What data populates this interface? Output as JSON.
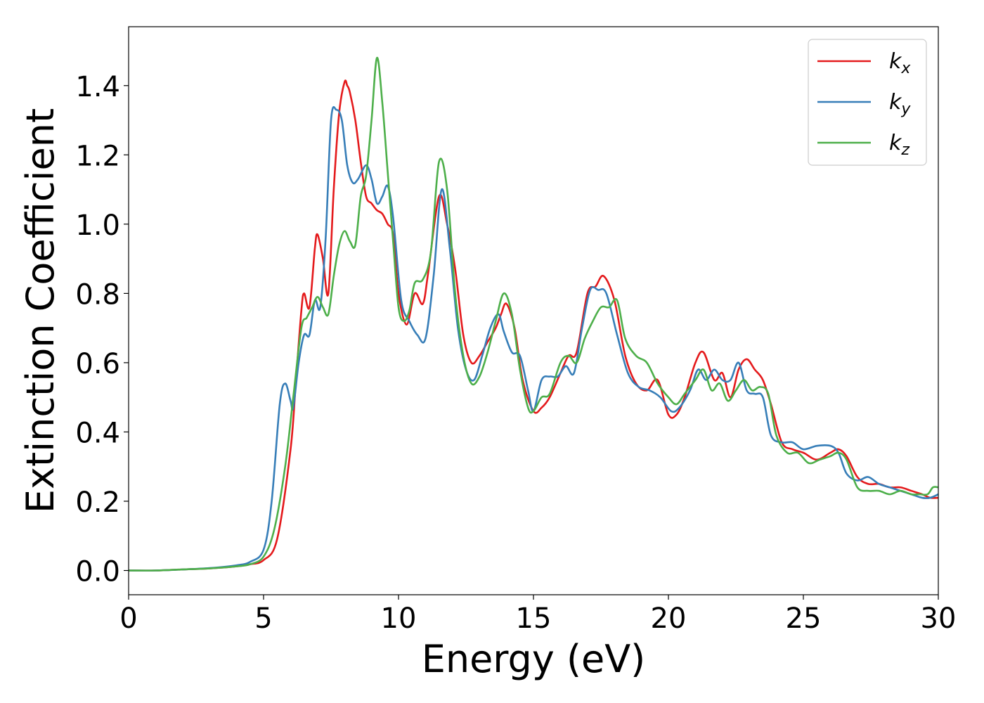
{
  "chart_data": {
    "type": "line",
    "xlabel": "Energy (eV)",
    "ylabel": "Extinction Coefficient",
    "xlim": [
      0,
      30
    ],
    "ylim": [
      -0.07,
      1.57
    ],
    "xticks": [
      0,
      5,
      10,
      15,
      20,
      25,
      30
    ],
    "xtick_labels": [
      "0",
      "5",
      "10",
      "15",
      "20",
      "25",
      "30"
    ],
    "yticks": [
      0.0,
      0.2,
      0.4,
      0.6,
      0.8,
      1.0,
      1.2,
      1.4
    ],
    "ytick_labels": [
      "0.0",
      "0.2",
      "0.4",
      "0.6",
      "0.8",
      "1.0",
      "1.2",
      "1.4"
    ],
    "grid": false,
    "legend_position": "top-right",
    "series": [
      {
        "name": "k_x",
        "label_base": "k",
        "label_sub": "x",
        "color": "#e41a1c",
        "x": [
          0,
          1,
          2,
          3,
          4,
          4.5,
          5,
          5.5,
          6,
          6.2,
          6.4,
          6.5,
          6.7,
          6.9,
          7.0,
          7.2,
          7.4,
          7.6,
          7.8,
          8.0,
          8.1,
          8.2,
          8.4,
          8.6,
          8.8,
          9.0,
          9.2,
          9.4,
          9.6,
          9.8,
          10.0,
          10.3,
          10.6,
          10.9,
          11.1,
          11.5,
          11.8,
          12.1,
          12.4,
          12.7,
          13.0,
          13.3,
          13.6,
          13.8,
          14.0,
          14.3,
          14.6,
          15.0,
          15.3,
          15.6,
          16.0,
          16.3,
          16.6,
          17.0,
          17.3,
          17.6,
          18.0,
          18.4,
          18.8,
          19.2,
          19.6,
          20.0,
          20.3,
          20.6,
          21.0,
          21.3,
          21.7,
          22.0,
          22.3,
          22.6,
          22.9,
          23.2,
          23.5,
          23.8,
          24.2,
          24.6,
          25.0,
          25.5,
          26.0,
          26.3,
          26.6,
          27.0,
          27.4,
          27.8,
          28.2,
          28.6,
          29.0,
          29.4,
          29.7,
          30.0
        ],
        "y": [
          0.0,
          0.0,
          0.003,
          0.006,
          0.012,
          0.018,
          0.03,
          0.09,
          0.35,
          0.55,
          0.75,
          0.8,
          0.76,
          0.93,
          0.97,
          0.9,
          0.8,
          1.1,
          1.32,
          1.41,
          1.4,
          1.38,
          1.3,
          1.18,
          1.08,
          1.06,
          1.04,
          1.03,
          1.0,
          0.97,
          0.8,
          0.71,
          0.8,
          0.77,
          0.86,
          1.08,
          1.0,
          0.87,
          0.68,
          0.6,
          0.62,
          0.66,
          0.7,
          0.74,
          0.77,
          0.7,
          0.55,
          0.46,
          0.47,
          0.5,
          0.57,
          0.62,
          0.63,
          0.8,
          0.82,
          0.85,
          0.78,
          0.62,
          0.54,
          0.52,
          0.55,
          0.45,
          0.45,
          0.5,
          0.6,
          0.63,
          0.55,
          0.57,
          0.5,
          0.58,
          0.61,
          0.58,
          0.55,
          0.48,
          0.37,
          0.35,
          0.34,
          0.32,
          0.34,
          0.35,
          0.33,
          0.27,
          0.25,
          0.25,
          0.24,
          0.24,
          0.23,
          0.22,
          0.21,
          0.21
        ]
      },
      {
        "name": "k_y",
        "label_base": "k",
        "label_sub": "y",
        "color": "#377eb8",
        "x": [
          0,
          1,
          2,
          3,
          4,
          4.5,
          5,
          5.3,
          5.6,
          5.8,
          6.0,
          6.1,
          6.3,
          6.5,
          6.7,
          6.9,
          7.1,
          7.3,
          7.5,
          7.7,
          7.9,
          8.1,
          8.3,
          8.5,
          8.8,
          9.0,
          9.2,
          9.4,
          9.6,
          9.8,
          10.1,
          10.4,
          10.7,
          11.0,
          11.3,
          11.6,
          11.9,
          12.2,
          12.5,
          12.8,
          13.1,
          13.4,
          13.7,
          13.9,
          14.2,
          14.5,
          14.8,
          15.0,
          15.3,
          15.6,
          15.9,
          16.2,
          16.5,
          16.8,
          17.1,
          17.4,
          17.7,
          18.1,
          18.5,
          18.9,
          19.3,
          19.7,
          20.1,
          20.4,
          20.8,
          21.1,
          21.4,
          21.7,
          22.0,
          22.3,
          22.6,
          22.9,
          23.2,
          23.5,
          23.8,
          24.2,
          24.6,
          25.0,
          25.5,
          26.0,
          26.3,
          26.6,
          27.0,
          27.4,
          27.8,
          28.2,
          28.6,
          29.0,
          29.4,
          29.7,
          30.0
        ],
        "y": [
          0.0,
          0.0,
          0.003,
          0.007,
          0.015,
          0.025,
          0.06,
          0.2,
          0.48,
          0.54,
          0.49,
          0.47,
          0.6,
          0.68,
          0.68,
          0.78,
          0.76,
          0.96,
          1.3,
          1.33,
          1.3,
          1.17,
          1.12,
          1.13,
          1.17,
          1.13,
          1.06,
          1.08,
          1.11,
          1.02,
          0.78,
          0.72,
          0.68,
          0.67,
          0.85,
          1.1,
          0.93,
          0.7,
          0.58,
          0.55,
          0.62,
          0.7,
          0.74,
          0.69,
          0.63,
          0.62,
          0.52,
          0.46,
          0.55,
          0.56,
          0.56,
          0.59,
          0.57,
          0.7,
          0.81,
          0.81,
          0.8,
          0.68,
          0.57,
          0.53,
          0.52,
          0.5,
          0.46,
          0.47,
          0.52,
          0.58,
          0.55,
          0.58,
          0.55,
          0.55,
          0.6,
          0.52,
          0.51,
          0.5,
          0.39,
          0.37,
          0.37,
          0.35,
          0.36,
          0.36,
          0.34,
          0.28,
          0.26,
          0.27,
          0.25,
          0.24,
          0.23,
          0.22,
          0.21,
          0.21,
          0.22
        ]
      },
      {
        "name": "k_z",
        "label_base": "k",
        "label_sub": "z",
        "color": "#4daf4a",
        "x": [
          0,
          1,
          2,
          3,
          4,
          4.5,
          5,
          5.4,
          5.8,
          6.1,
          6.4,
          6.6,
          6.8,
          7.0,
          7.2,
          7.4,
          7.6,
          7.8,
          8.0,
          8.2,
          8.4,
          8.6,
          8.8,
          9.0,
          9.2,
          9.4,
          9.6,
          9.8,
          10.0,
          10.2,
          10.4,
          10.6,
          10.9,
          11.2,
          11.5,
          11.8,
          12.1,
          12.4,
          12.7,
          13.0,
          13.3,
          13.6,
          13.9,
          14.2,
          14.5,
          14.8,
          15.0,
          15.3,
          15.6,
          16.0,
          16.3,
          16.6,
          16.9,
          17.2,
          17.5,
          17.8,
          18.1,
          18.4,
          18.8,
          19.2,
          19.6,
          20.0,
          20.3,
          20.6,
          21.0,
          21.3,
          21.6,
          21.9,
          22.2,
          22.5,
          22.8,
          23.1,
          23.4,
          23.7,
          24.0,
          24.4,
          24.8,
          25.2,
          25.6,
          26.0,
          26.3,
          26.6,
          27.0,
          27.4,
          27.8,
          28.2,
          28.6,
          29.0,
          29.3,
          29.6,
          29.8,
          30.0
        ],
        "y": [
          0.0,
          0.0,
          0.003,
          0.006,
          0.012,
          0.018,
          0.04,
          0.12,
          0.3,
          0.5,
          0.7,
          0.73,
          0.76,
          0.79,
          0.76,
          0.74,
          0.85,
          0.94,
          0.98,
          0.95,
          0.94,
          1.08,
          1.14,
          1.3,
          1.48,
          1.35,
          1.15,
          0.95,
          0.76,
          0.72,
          0.75,
          0.83,
          0.84,
          0.92,
          1.18,
          1.1,
          0.8,
          0.62,
          0.54,
          0.56,
          0.63,
          0.72,
          0.8,
          0.74,
          0.58,
          0.47,
          0.46,
          0.5,
          0.51,
          0.6,
          0.62,
          0.6,
          0.67,
          0.72,
          0.76,
          0.76,
          0.78,
          0.67,
          0.62,
          0.6,
          0.54,
          0.5,
          0.48,
          0.51,
          0.55,
          0.58,
          0.52,
          0.54,
          0.49,
          0.52,
          0.55,
          0.52,
          0.53,
          0.51,
          0.39,
          0.34,
          0.34,
          0.31,
          0.32,
          0.33,
          0.34,
          0.32,
          0.24,
          0.23,
          0.23,
          0.22,
          0.23,
          0.22,
          0.22,
          0.22,
          0.24,
          0.24
        ]
      }
    ]
  }
}
